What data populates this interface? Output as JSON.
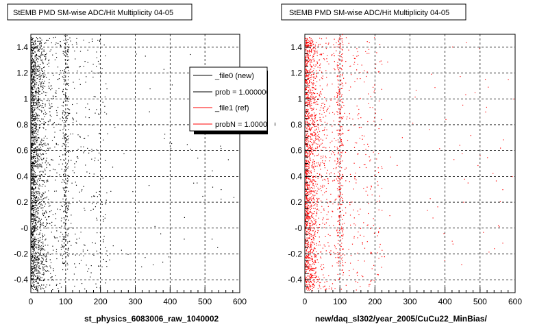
{
  "chart_data": [
    {
      "type": "scatter",
      "title": "StEMB PMD SM-wise ADC/Hit Multiplicity 04-05",
      "xlabel": "st_physics_6083006_raw_1040002",
      "ylabel": "",
      "xlim": [
        0,
        600
      ],
      "ylim": [
        -0.5,
        1.5
      ],
      "x_ticks": [
        "0",
        "100",
        "200",
        "300",
        "400",
        "500",
        "600"
      ],
      "y_ticks": [
        "-0.4",
        "-0.2",
        "-0",
        "0.2",
        "0.4",
        "0.6",
        "0.8",
        "1",
        "1.2",
        "1.4"
      ],
      "grid": true,
      "point_color": "#000000",
      "legend": {
        "placement": "top-right",
        "entries": [
          {
            "label": "_file0 (new)",
            "color": "#000000"
          },
          {
            "label": "prob = 1.000000",
            "color": "#000000"
          },
          {
            "label": "_file1 (ref)",
            "color": "#ff0000"
          },
          {
            "label": "probN = 1.000000",
            "color": "#ff0000"
          }
        ]
      }
    },
    {
      "type": "scatter",
      "title": "StEMB PMD SM-wise ADC/Hit Multiplicity 04-05",
      "xlabel": "new/daq_sl302/year_2005/CuCu22_MinBias/",
      "ylabel": "",
      "xlim": [
        0,
        600
      ],
      "ylim": [
        -0.5,
        1.5
      ],
      "x_ticks": [
        "0",
        "100",
        "200",
        "300",
        "400",
        "500",
        "600"
      ],
      "y_ticks": [
        "-0.4",
        "-0.2",
        "-0",
        "0.2",
        "0.4",
        "0.6",
        "0.8",
        "1",
        "1.2",
        "1.4"
      ],
      "grid": true,
      "point_color": "#ff0000",
      "legend": null
    }
  ]
}
